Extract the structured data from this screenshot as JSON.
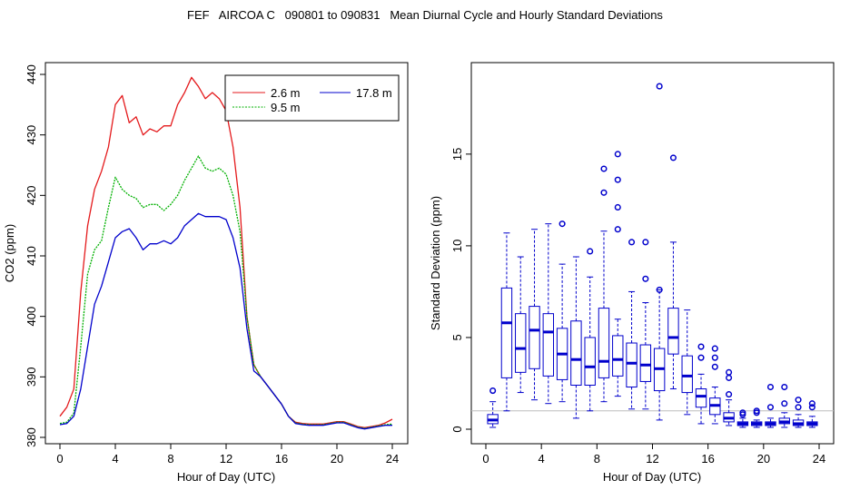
{
  "title": "FEF   AIRCOA C   090801 to 090831   Mean Diurnal Cycle and Hourly Standard Deviations",
  "colors": {
    "red": "#e41a1c",
    "green": "#00b000",
    "blue": "#0000cc",
    "axis": "#000000"
  },
  "chart_data": [
    {
      "type": "line",
      "title": "",
      "xlabel": "Hour of Day (UTC)",
      "ylabel": "CO2 (ppm)",
      "xlim": [
        0,
        24
      ],
      "ylim": [
        380,
        440
      ],
      "xticks": [
        0,
        4,
        8,
        12,
        16,
        20,
        24
      ],
      "yticks": [
        380,
        390,
        400,
        410,
        420,
        430,
        440
      ],
      "legend": {
        "placement": "top-right",
        "entries": [
          "2.6 m",
          "9.5 m",
          "17.8 m"
        ]
      },
      "series": [
        {
          "name": "2.6 m",
          "color": "#e41a1c",
          "x": [
            0,
            0.5,
            1,
            1.5,
            2,
            2.5,
            3,
            3.5,
            4,
            4.5,
            5,
            5.5,
            6,
            6.5,
            7,
            7.5,
            8,
            8.5,
            9,
            9.5,
            10,
            10.5,
            11,
            11.5,
            12,
            12.5,
            13,
            13.5,
            14,
            14.5,
            15,
            15.5,
            16,
            16.5,
            17,
            17.5,
            18,
            18.5,
            19,
            19.5,
            20,
            20.5,
            21,
            21.5,
            22,
            22.5,
            23,
            23.5,
            24
          ],
          "y": [
            383.5,
            385,
            388,
            404,
            415,
            421,
            424,
            428,
            435,
            436.5,
            432,
            433,
            430,
            431,
            430.5,
            431.5,
            431.5,
            435,
            437,
            439.5,
            438,
            436,
            437,
            436,
            434,
            428,
            418,
            400,
            392,
            390,
            388.5,
            387,
            385.5,
            383.5,
            382.5,
            382.3,
            382.2,
            382.2,
            382.2,
            382.4,
            382.6,
            382.6,
            382.2,
            381.8,
            381.6,
            381.8,
            382,
            382.4,
            383
          ]
        },
        {
          "name": "9.5 m",
          "color": "#00b000",
          "x": [
            0,
            0.5,
            1,
            1.5,
            2,
            2.5,
            3,
            3.5,
            4,
            4.5,
            5,
            5.5,
            6,
            6.5,
            7,
            7.5,
            8,
            8.5,
            9,
            9.5,
            10,
            10.5,
            11,
            11.5,
            12,
            12.5,
            13,
            13.5,
            14,
            14.5,
            15,
            15.5,
            16,
            16.5,
            17,
            17.5,
            18,
            18.5,
            19,
            19.5,
            20,
            20.5,
            21,
            21.5,
            22,
            22.5,
            23,
            23.5,
            24
          ],
          "y": [
            382.3,
            382.5,
            384,
            395,
            407,
            411,
            412.5,
            418,
            423,
            421,
            420,
            419.5,
            418,
            418.5,
            418.5,
            417.5,
            418.5,
            420,
            422.5,
            424.5,
            426.5,
            424.5,
            424,
            424.5,
            423.5,
            420,
            414,
            400,
            392,
            390,
            388.5,
            387,
            385.5,
            383.5,
            382.4,
            382.2,
            382.1,
            382.1,
            382.1,
            382.3,
            382.5,
            382.5,
            382.1,
            381.7,
            381.5,
            381.7,
            381.9,
            382.1,
            382.2
          ]
        },
        {
          "name": "17.8 m",
          "color": "#0000cc",
          "x": [
            0,
            0.5,
            1,
            1.5,
            2,
            2.5,
            3,
            3.5,
            4,
            4.5,
            5,
            5.5,
            6,
            6.5,
            7,
            7.5,
            8,
            8.5,
            9,
            9.5,
            10,
            10.5,
            11,
            11.5,
            12,
            12.5,
            13,
            13.5,
            14,
            14.5,
            15,
            15.5,
            16,
            16.5,
            17,
            17.5,
            18,
            18.5,
            19,
            19.5,
            20,
            20.5,
            21,
            21.5,
            22,
            22.5,
            23,
            23.5,
            24
          ],
          "y": [
            382.1,
            382.3,
            383.5,
            388,
            395,
            402,
            405,
            409,
            413,
            414,
            414.5,
            413,
            411,
            412,
            412,
            412.5,
            412,
            413,
            415,
            416,
            417,
            416.5,
            416.5,
            416.5,
            416,
            413,
            408,
            398,
            391,
            390,
            388.5,
            387,
            385.5,
            383.5,
            382.3,
            382.1,
            382,
            382,
            382,
            382.2,
            382.4,
            382.4,
            382,
            381.6,
            381.4,
            381.6,
            381.8,
            382,
            382
          ]
        }
      ]
    },
    {
      "type": "boxplot",
      "title": "",
      "xlabel": "Hour of Day (UTC)",
      "ylabel": "Standard Deviation (ppm)",
      "xlim": [
        0,
        24
      ],
      "ylim": [
        0,
        19
      ],
      "xticks": [
        0,
        4,
        8,
        12,
        16,
        20,
        24
      ],
      "yticks": [
        0,
        5,
        10,
        15
      ],
      "boxes": [
        {
          "hour": 0.5,
          "whisker_low": 0.1,
          "q1": 0.3,
          "median": 0.5,
          "q3": 0.8,
          "whisker_high": 1.5,
          "outliers": [
            2.1
          ]
        },
        {
          "hour": 1.5,
          "whisker_low": 1.0,
          "q1": 2.8,
          "median": 5.8,
          "q3": 7.7,
          "whisker_high": 10.7,
          "outliers": []
        },
        {
          "hour": 2.5,
          "whisker_low": 2.0,
          "q1": 3.1,
          "median": 4.4,
          "q3": 6.3,
          "whisker_high": 9.4,
          "outliers": []
        },
        {
          "hour": 3.5,
          "whisker_low": 1.6,
          "q1": 3.3,
          "median": 5.4,
          "q3": 6.7,
          "whisker_high": 10.9,
          "outliers": []
        },
        {
          "hour": 4.5,
          "whisker_low": 1.4,
          "q1": 2.9,
          "median": 5.3,
          "q3": 6.3,
          "whisker_high": 11.2,
          "outliers": []
        },
        {
          "hour": 5.5,
          "whisker_low": 1.5,
          "q1": 2.7,
          "median": 4.1,
          "q3": 5.5,
          "whisker_high": 9.0,
          "outliers": [
            11.2
          ]
        },
        {
          "hour": 6.5,
          "whisker_low": 0.6,
          "q1": 2.4,
          "median": 3.8,
          "q3": 5.9,
          "whisker_high": 9.4,
          "outliers": []
        },
        {
          "hour": 7.5,
          "whisker_low": 1.0,
          "q1": 2.4,
          "median": 3.4,
          "q3": 5.0,
          "whisker_high": 8.3,
          "outliers": [
            9.7
          ]
        },
        {
          "hour": 8.5,
          "whisker_low": 1.5,
          "q1": 2.8,
          "median": 3.7,
          "q3": 6.6,
          "whisker_high": 10.8,
          "outliers": [
            12.9,
            14.2
          ]
        },
        {
          "hour": 9.5,
          "whisker_low": 1.8,
          "q1": 2.9,
          "median": 3.8,
          "q3": 5.1,
          "whisker_high": 6.0,
          "outliers": [
            10.9,
            12.1,
            13.6,
            15.0
          ]
        },
        {
          "hour": 10.5,
          "whisker_low": 1.1,
          "q1": 2.3,
          "median": 3.6,
          "q3": 4.7,
          "whisker_high": 7.5,
          "outliers": [
            10.2
          ]
        },
        {
          "hour": 11.5,
          "whisker_low": 1.1,
          "q1": 2.6,
          "median": 3.5,
          "q3": 4.6,
          "whisker_high": 6.9,
          "outliers": [
            8.2,
            10.2
          ]
        },
        {
          "hour": 12.5,
          "whisker_low": 0.5,
          "q1": 2.1,
          "median": 3.3,
          "q3": 4.4,
          "whisker_high": 7.6,
          "outliers": [
            7.6,
            18.7
          ]
        },
        {
          "hour": 13.5,
          "whisker_low": 2.2,
          "q1": 4.1,
          "median": 5.0,
          "q3": 6.6,
          "whisker_high": 10.2,
          "outliers": [
            14.8
          ]
        },
        {
          "hour": 14.5,
          "whisker_low": 0.8,
          "q1": 2.0,
          "median": 2.9,
          "q3": 4.0,
          "whisker_high": 6.5,
          "outliers": []
        },
        {
          "hour": 15.5,
          "whisker_low": 0.3,
          "q1": 1.2,
          "median": 1.8,
          "q3": 2.2,
          "whisker_high": 3.0,
          "outliers": [
            3.9,
            4.5
          ]
        },
        {
          "hour": 16.5,
          "whisker_low": 0.3,
          "q1": 0.8,
          "median": 1.3,
          "q3": 1.7,
          "whisker_high": 2.3,
          "outliers": [
            3.4,
            3.9,
            4.4
          ]
        },
        {
          "hour": 17.5,
          "whisker_low": 0.2,
          "q1": 0.4,
          "median": 0.6,
          "q3": 0.9,
          "whisker_high": 1.6,
          "outliers": [
            1.9,
            2.8,
            3.1
          ]
        },
        {
          "hour": 18.5,
          "whisker_low": 0.1,
          "q1": 0.2,
          "median": 0.3,
          "q3": 0.4,
          "whisker_high": 0.6,
          "outliers": [
            0.8,
            0.9
          ]
        },
        {
          "hour": 19.5,
          "whisker_low": 0.1,
          "q1": 0.2,
          "median": 0.3,
          "q3": 0.4,
          "whisker_high": 0.5,
          "outliers": [
            0.9,
            1.0
          ]
        },
        {
          "hour": 20.5,
          "whisker_low": 0.1,
          "q1": 0.2,
          "median": 0.3,
          "q3": 0.4,
          "whisker_high": 0.6,
          "outliers": [
            1.2,
            2.3
          ]
        },
        {
          "hour": 21.5,
          "whisker_low": 0.1,
          "q1": 0.3,
          "median": 0.4,
          "q3": 0.6,
          "whisker_high": 0.9,
          "outliers": [
            1.4,
            2.3
          ]
        },
        {
          "hour": 22.5,
          "whisker_low": 0.1,
          "q1": 0.2,
          "median": 0.3,
          "q3": 0.5,
          "whisker_high": 0.8,
          "outliers": [
            1.2,
            1.6
          ]
        },
        {
          "hour": 23.5,
          "whisker_low": 0.1,
          "q1": 0.2,
          "median": 0.3,
          "q3": 0.4,
          "whisker_high": 0.7,
          "outliers": [
            1.2,
            1.4
          ]
        }
      ],
      "reference_lines": [
        1.0
      ]
    }
  ]
}
